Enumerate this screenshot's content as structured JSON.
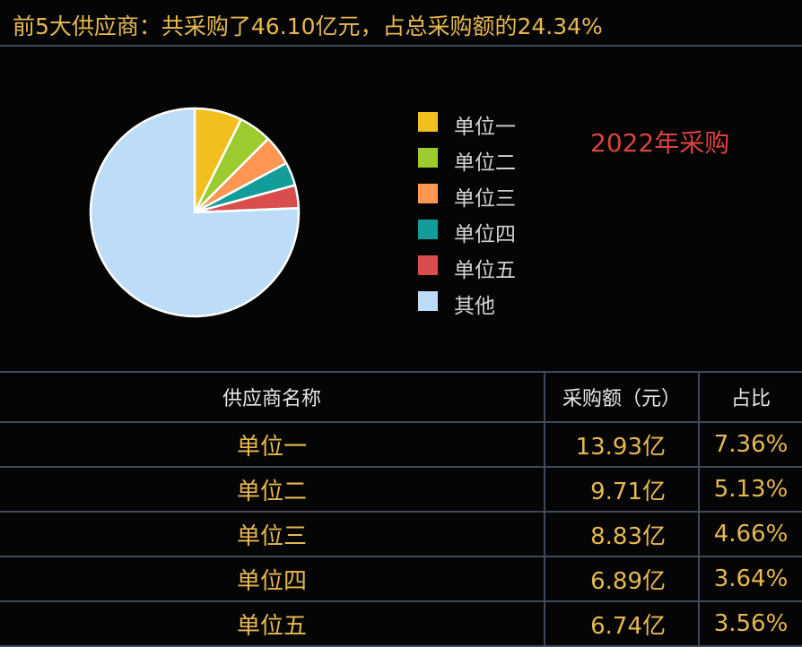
{
  "header": {
    "title": "前5大供应商：共采购了46.10亿元，占总采购额的24.34%"
  },
  "chart_data": {
    "type": "pie",
    "title": "2022年采购",
    "labels": [
      "单位一",
      "单位二",
      "单位三",
      "单位四",
      "单位五",
      "其他"
    ],
    "values": [
      7.36,
      5.13,
      4.66,
      3.64,
      3.56,
      75.66
    ],
    "colors": [
      "#F2BF1E",
      "#9BCB2E",
      "#FF9651",
      "#139C9A",
      "#D94E4C",
      "#BDDCF7"
    ],
    "start_angle": "12 o'clock",
    "direction": "clockwise",
    "legend_position": "right"
  },
  "table": {
    "headers": [
      "供应商名称",
      "采购额（元）",
      "占比"
    ],
    "rows": [
      [
        "单位一",
        "13.93亿",
        "7.36%"
      ],
      [
        "单位二",
        "9.71亿",
        "5.13%"
      ],
      [
        "单位三",
        "8.83亿",
        "4.66%"
      ],
      [
        "单位四",
        "6.89亿",
        "3.64%"
      ],
      [
        "单位五",
        "6.74亿",
        "3.56%"
      ]
    ]
  }
}
